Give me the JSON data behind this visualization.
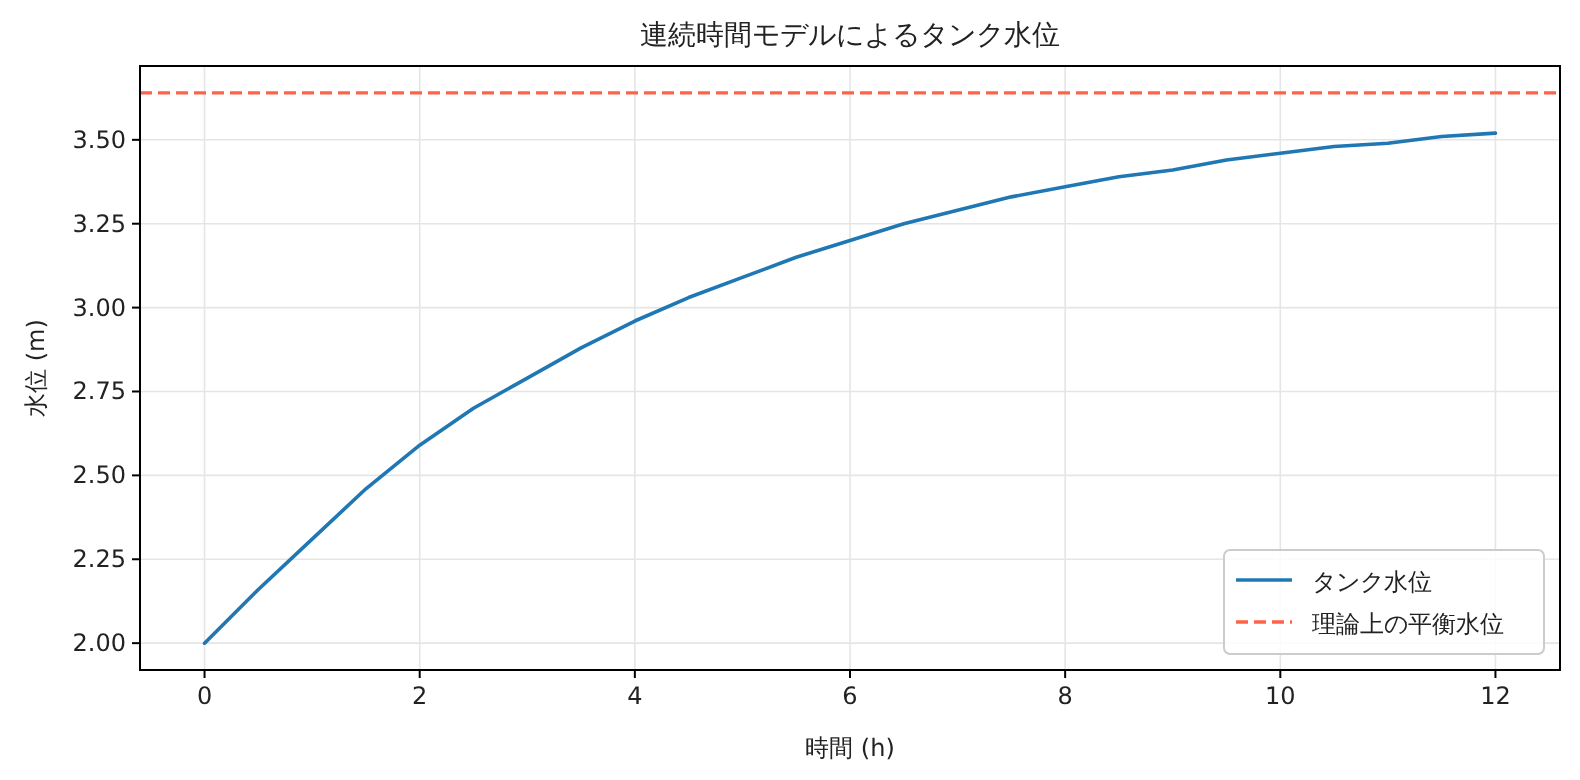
{
  "chart_data": {
    "type": "line",
    "title": "連続時間モデルによるタンク水位",
    "xlabel": "時間 (h)",
    "ylabel": "水位 (m)",
    "x": [
      0,
      0.5,
      1,
      1.5,
      2,
      2.5,
      3,
      3.5,
      4,
      4.5,
      5,
      5.5,
      6,
      6.5,
      7,
      7.5,
      8,
      8.5,
      9,
      9.5,
      10,
      10.5,
      11,
      11.5,
      12
    ],
    "series": [
      {
        "name": "タンク水位",
        "color": "#1f77b4",
        "values": [
          2.0,
          2.16,
          2.31,
          2.46,
          2.59,
          2.7,
          2.79,
          2.88,
          2.96,
          3.03,
          3.09,
          3.15,
          3.2,
          3.25,
          3.29,
          3.33,
          3.36,
          3.39,
          3.41,
          3.44,
          3.46,
          3.48,
          3.49,
          3.51,
          3.52
        ]
      }
    ],
    "ref_lines": [
      {
        "axis": "y",
        "value": 3.64,
        "label": "理論上の平衡水位",
        "color": "#ff6347",
        "line_style": "dashed"
      }
    ],
    "xlim": [
      -0.6,
      12.6
    ],
    "ylim": [
      1.92,
      3.72
    ],
    "xticks": [
      0,
      2,
      4,
      6,
      8,
      10,
      12
    ],
    "yticks": [
      {
        "value": 2,
        "label": "2.00"
      },
      {
        "value": 2.25,
        "label": "2.25"
      },
      {
        "value": 2.5,
        "label": "2.50"
      },
      {
        "value": 2.75,
        "label": "2.75"
      },
      {
        "value": 3,
        "label": "3.00"
      },
      {
        "value": 3.25,
        "label": "3.25"
      },
      {
        "value": 3.5,
        "label": "3.50"
      }
    ],
    "grid": true,
    "legend": "bottom right",
    "marker": "none",
    "line_style": "solid"
  }
}
